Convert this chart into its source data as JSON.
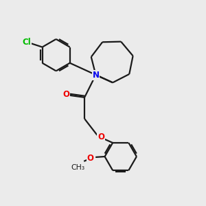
{
  "bg_color": "#ebebeb",
  "bond_color": "#1a1a1a",
  "N_color": "#0000ee",
  "O_color": "#ee0000",
  "Cl_color": "#00bb00",
  "bond_width": 1.6,
  "figsize": [
    3.0,
    3.0
  ],
  "dpi": 100,
  "xlim": [
    0,
    10
  ],
  "ylim": [
    0,
    10
  ]
}
